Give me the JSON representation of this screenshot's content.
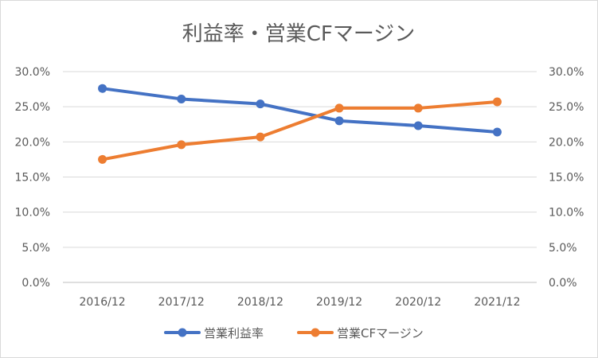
{
  "chart_data": {
    "type": "line",
    "title": "利益率・営業CFマージン",
    "categories": [
      "2016/12",
      "2017/12",
      "2018/12",
      "2019/12",
      "2020/12",
      "2021/12"
    ],
    "series": [
      {
        "name": "営業利益率",
        "values": [
          27.6,
          26.1,
          25.4,
          23.0,
          22.3,
          21.4
        ],
        "color": "#4472c4"
      },
      {
        "name": "営業CFマージン",
        "values": [
          17.5,
          19.6,
          20.7,
          24.8,
          24.8,
          25.7
        ],
        "color": "#ed7d31"
      }
    ],
    "y_ticks": [
      "0.0%",
      "5.0%",
      "10.0%",
      "15.0%",
      "20.0%",
      "25.0%",
      "30.0%"
    ],
    "y_ticks_right": [
      "0.0%",
      "5.0%",
      "10.0%",
      "15.0%",
      "20.0%",
      "25.0%",
      "30.0%"
    ],
    "ylim": [
      0,
      30
    ],
    "grid": true,
    "legend_position": "bottom"
  }
}
